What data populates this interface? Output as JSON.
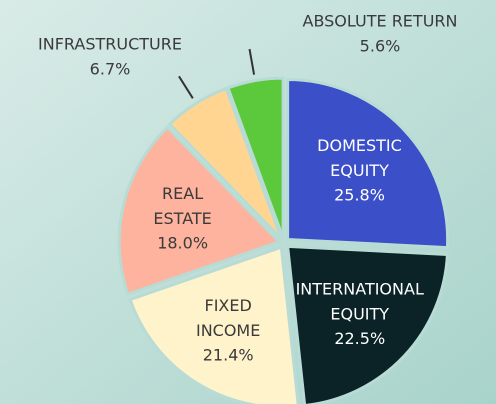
{
  "chart_data": {
    "type": "pie",
    "categories": [
      "DOMESTIC EQUITY",
      "INTERNATIONAL EQUITY",
      "FIXED INCOME",
      "REAL ESTATE",
      "INFRASTRUCTURE",
      "ABSOLUTE RETURN"
    ],
    "values": [
      25.8,
      22.5,
      21.4,
      18.0,
      6.7,
      5.6
    ],
    "value_labels": [
      "25.8%",
      "22.5%",
      "21.4%",
      "18.0%",
      "6.7%",
      "5.6%"
    ],
    "colors": [
      "#3a4fc8",
      "#0b2326",
      "#fff3cc",
      "#fdb39d",
      "#ffd591",
      "#5cc83b"
    ]
  }
}
